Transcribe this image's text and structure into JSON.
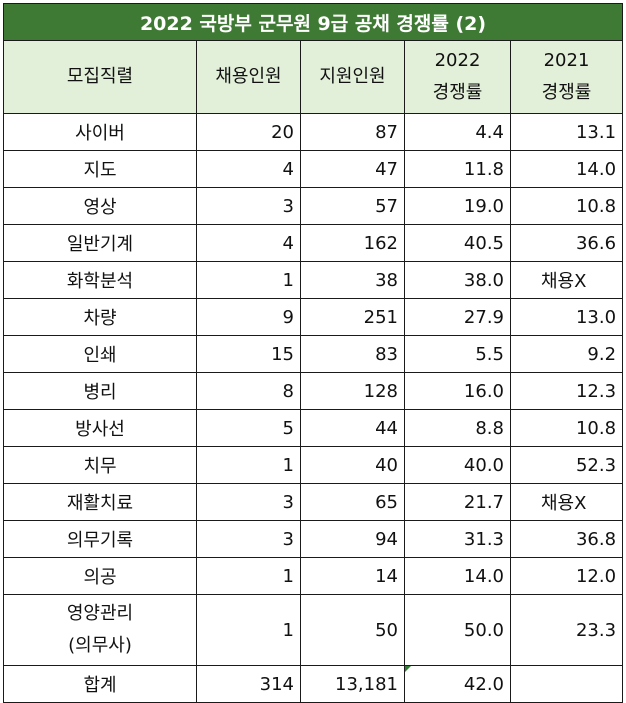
{
  "title": "2022 국방부 군무원 9급 공채  경쟁률 (2)",
  "headers": {
    "job": "모집직렬",
    "hires": "채용인원",
    "applicants": "지원인원",
    "rate2022_year": "2022",
    "rate2022_label": "경쟁률",
    "rate2021_year": "2021",
    "rate2021_label": "경쟁률"
  },
  "rows": [
    {
      "job": "사이버",
      "hires": "20",
      "applicants": "87",
      "rate2022": "4.4",
      "rate2021": "13.1"
    },
    {
      "job": "지도",
      "hires": "4",
      "applicants": "47",
      "rate2022": "11.8",
      "rate2021": "14.0"
    },
    {
      "job": "영상",
      "hires": "3",
      "applicants": "57",
      "rate2022": "19.0",
      "rate2021": "10.8"
    },
    {
      "job": "일반기계",
      "hires": "4",
      "applicants": "162",
      "rate2022": "40.5",
      "rate2021": "36.6"
    },
    {
      "job": "화학분석",
      "hires": "1",
      "applicants": "38",
      "rate2022": "38.0",
      "rate2021": "채용X"
    },
    {
      "job": "차량",
      "hires": "9",
      "applicants": "251",
      "rate2022": "27.9",
      "rate2021": "13.0"
    },
    {
      "job": "인쇄",
      "hires": "15",
      "applicants": "83",
      "rate2022": "5.5",
      "rate2021": "9.2"
    },
    {
      "job": "병리",
      "hires": "8",
      "applicants": "128",
      "rate2022": "16.0",
      "rate2021": "12.3"
    },
    {
      "job": "방사선",
      "hires": "5",
      "applicants": "44",
      "rate2022": "8.8",
      "rate2021": "10.8"
    },
    {
      "job": "치무",
      "hires": "1",
      "applicants": "40",
      "rate2022": "40.0",
      "rate2021": "52.3"
    },
    {
      "job": "재활치료",
      "hires": "3",
      "applicants": "65",
      "rate2022": "21.7",
      "rate2021": "채용X"
    },
    {
      "job": "의무기록",
      "hires": "3",
      "applicants": "94",
      "rate2022": "31.3",
      "rate2021": "36.8"
    },
    {
      "job": "의공",
      "hires": "1",
      "applicants": "14",
      "rate2022": "14.0",
      "rate2021": "12.0"
    }
  ],
  "tall_row": {
    "job_line1": "영양관리",
    "job_line2": "(의무사)",
    "hires": "1",
    "applicants": "50",
    "rate2022": "50.0",
    "rate2021": "23.3"
  },
  "total_row": {
    "job": "합계",
    "hires": "314",
    "applicants": "13,181",
    "rate2022": "42.0",
    "rate2021": ""
  }
}
